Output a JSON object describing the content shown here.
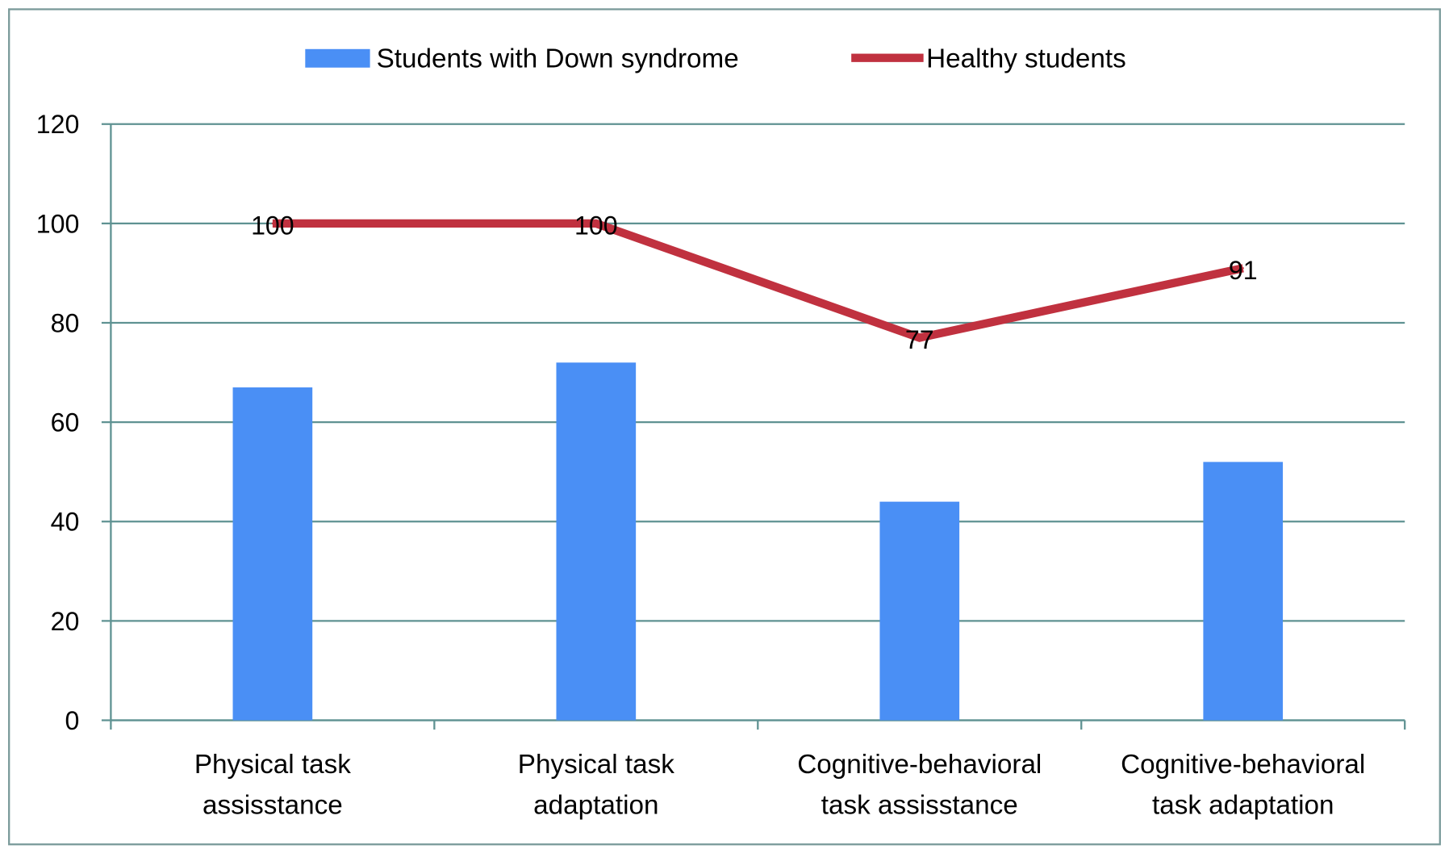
{
  "chart_data": {
    "type": "bar",
    "title": "",
    "xlabel": "",
    "ylabel": "",
    "ylim": [
      0,
      120
    ],
    "yticks": [
      0,
      20,
      40,
      60,
      80,
      100,
      120
    ],
    "grid": true,
    "legend_position": "top-center",
    "categories": [
      [
        "Physical task",
        "assisstance"
      ],
      [
        "Physical task",
        "adaptation"
      ],
      [
        "Cognitive-behavioral",
        "task assisstance"
      ],
      [
        "Cognitive-behavioral",
        "task adaptation"
      ]
    ],
    "series": [
      {
        "name": "Students with Down syndrome",
        "type": "bar",
        "color": "#4a8ff5",
        "values": [
          67,
          72,
          44,
          52
        ],
        "show_labels": false
      },
      {
        "name": "Healthy students",
        "type": "line",
        "color": "#c0313f",
        "values": [
          100,
          100,
          77,
          91
        ],
        "show_labels": true
      }
    ],
    "colors": {
      "grid": "#5f9292",
      "axis": "#5f9292",
      "frame": "#7a9a9a"
    }
  }
}
